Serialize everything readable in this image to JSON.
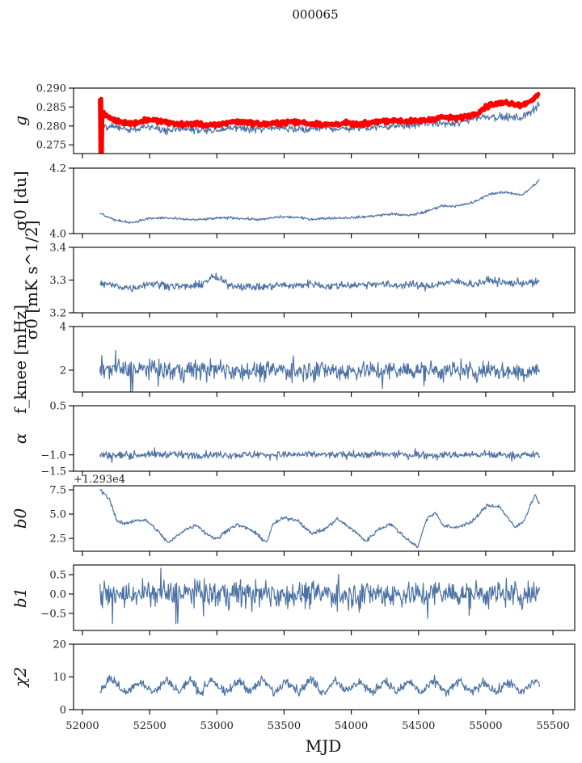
{
  "chart_data": {
    "type": "line",
    "title": "000065",
    "xlabel": "MJD",
    "xlim": [
      51934,
      55662
    ],
    "xticks": [
      52000,
      52500,
      53000,
      53500,
      54000,
      54500,
      55000,
      55500
    ],
    "xtick_labels": [
      "52000",
      "52500",
      "53000",
      "53500",
      "54000",
      "54500",
      "55000",
      "55500"
    ],
    "grid": false,
    "colors": {
      "series": "#4c72a4",
      "reference": "#ff0000",
      "axis": "#000000"
    },
    "grid_x": [
      52130,
      52251,
      52372,
      52493,
      52614,
      52735,
      52856,
      52977,
      53098,
      53219,
      53340,
      53461,
      53582,
      53703,
      53824,
      53945,
      54066,
      54187,
      54308,
      54429,
      54550,
      54671,
      54792,
      54913,
      55034,
      55155,
      55276,
      55400
    ],
    "panels": [
      {
        "name": "g",
        "ylabel": "g",
        "ylim": [
          0.2727,
          0.29
        ],
        "yticks": [
          0.275,
          0.28,
          0.285,
          0.29
        ],
        "ytick_labels": [
          "0.275",
          "0.280",
          "0.285",
          "0.290"
        ],
        "series": [
          {
            "name": "g",
            "color": "#4c72a4",
            "noise": 0.0005,
            "values": [
              0.2795,
              0.2796,
              0.279,
              0.2797,
              0.2786,
              0.2795,
              0.279,
              0.2786,
              0.2795,
              0.2795,
              0.279,
              0.2795,
              0.2792,
              0.2793,
              0.2795,
              0.2792,
              0.2795,
              0.2797,
              0.28,
              0.2801,
              0.2808,
              0.2807,
              0.2805,
              0.2822,
              0.2826,
              0.2822,
              0.2822,
              0.2858
            ]
          },
          {
            "name": "g reference",
            "color": "#ff0000",
            "noise": 0.0003,
            "thick": true,
            "values": [
              0.2835,
              0.2813,
              0.2806,
              0.2817,
              0.281,
              0.2804,
              0.2806,
              0.28,
              0.2811,
              0.281,
              0.2804,
              0.2808,
              0.2811,
              0.2806,
              0.2803,
              0.2807,
              0.2803,
              0.2812,
              0.2815,
              0.2812,
              0.2815,
              0.2823,
              0.282,
              0.2831,
              0.2856,
              0.2862,
              0.2855,
              0.2882
            ]
          }
        ]
      },
      {
        "name": "sigma0-du",
        "ylabel": "σ0 [du]",
        "ylim": [
          4.0,
          4.2
        ],
        "yticks": [
          4.0,
          4.2
        ],
        "ytick_labels": [
          "4.0",
          "4.2"
        ],
        "series": [
          {
            "name": "sigma0 du",
            "color": "#4c72a4",
            "noise": 0.002,
            "values": [
              4.062,
              4.04,
              4.034,
              4.046,
              4.048,
              4.044,
              4.042,
              4.046,
              4.049,
              4.045,
              4.043,
              4.051,
              4.05,
              4.044,
              4.047,
              4.048,
              4.05,
              4.055,
              4.06,
              4.055,
              4.066,
              4.085,
              4.084,
              4.096,
              4.122,
              4.126,
              4.118,
              4.163
            ]
          }
        ]
      },
      {
        "name": "sigma0-mK",
        "ylabel": "σ0 [mK s^1/2]",
        "ylim": [
          3.2,
          3.4
        ],
        "yticks": [
          3.2,
          3.3,
          3.4
        ],
        "ytick_labels": [
          "3.2",
          "3.3",
          "3.4"
        ],
        "series": [
          {
            "name": "sigma0 mK",
            "color": "#4c72a4",
            "noise": 0.006,
            "values": [
              3.29,
              3.282,
              3.275,
              3.29,
              3.285,
              3.28,
              3.282,
              3.31,
              3.285,
              3.28,
              3.278,
              3.285,
              3.282,
              3.29,
              3.28,
              3.285,
              3.285,
              3.29,
              3.283,
              3.287,
              3.28,
              3.29,
              3.295,
              3.287,
              3.3,
              3.29,
              3.292,
              3.292
            ]
          }
        ]
      },
      {
        "name": "fknee",
        "ylabel": "f_knee [mHz]",
        "ylim": [
          1,
          4
        ],
        "yticks": [
          2,
          4
        ],
        "ytick_labels": [
          "2",
          "4"
        ],
        "series": [
          {
            "name": "fknee",
            "color": "#4c72a4",
            "noise": 0.22,
            "spiky": true,
            "values": [
              2.1,
              2.05,
              2.0,
              2.05,
              2.0,
              1.95,
              2.0,
              2.05,
              2.0,
              2.0,
              1.95,
              2.0,
              2.0,
              2.05,
              2.0,
              1.95,
              2.0,
              2.0,
              1.95,
              2.0,
              2.0,
              1.95,
              2.0,
              1.95,
              2.0,
              1.95,
              1.9,
              2.0
            ]
          }
        ]
      },
      {
        "name": "alpha",
        "ylabel": "α",
        "ylim": [
          -1.5,
          0.5
        ],
        "yticks": [
          -1.5,
          -1.0,
          0.5
        ],
        "ytick_labels": [
          "−1.5",
          "−1.0",
          "0.5"
        ],
        "series": [
          {
            "name": "alpha",
            "color": "#4c72a4",
            "noise": 0.055,
            "spiky": true,
            "values": [
              -1.0,
              -1.02,
              -1.0,
              -1.0,
              -0.98,
              -1.0,
              -1.0,
              -1.0,
              -1.0,
              -1.0,
              -0.99,
              -1.0,
              -1.0,
              -0.98,
              -1.0,
              -1.0,
              -1.0,
              -0.99,
              -1.0,
              -1.0,
              -1.0,
              -1.0,
              -1.0,
              -1.0,
              -1.0,
              -1.0,
              -1.0,
              -1.0
            ]
          }
        ]
      },
      {
        "name": "b0",
        "ylabel": "b0",
        "offset_text": "+1.293e4",
        "ylim": [
          1.17,
          7.92
        ],
        "yticks": [
          2.5,
          5.0,
          7.5
        ],
        "ytick_labels": [
          "2.5",
          "5.0",
          "7.5"
        ],
        "series": [
          {
            "name": "b0",
            "color": "#4c72a4",
            "noise": 0.1,
            "x": [
              52130,
              52200,
              52260,
              52320,
              52400,
              52480,
              52550,
              52640,
              52750,
              52850,
              52920,
              53000,
              53080,
              53150,
              53250,
              53370,
              53420,
              53500,
              53600,
              53700,
              53800,
              53894,
              54000,
              54110,
              54200,
              54290,
              54400,
              54495,
              54560,
              54630,
              54680,
              54770,
              54900,
              55010,
              55100,
              55155,
              55215,
              55280,
              55365,
              55400
            ],
            "values": [
              7.5,
              6.6,
              4.2,
              4.0,
              4.4,
              4.3,
              3.4,
              2.0,
              3.3,
              3.9,
              3.0,
              2.4,
              3.4,
              3.9,
              3.4,
              2.1,
              4.0,
              4.6,
              4.4,
              3.0,
              3.4,
              4.5,
              3.5,
              2.2,
              3.4,
              4.0,
              2.6,
              1.6,
              4.5,
              5.2,
              3.8,
              3.6,
              4.2,
              5.9,
              5.8,
              4.8,
              3.6,
              4.2,
              7.0,
              6.1
            ]
          }
        ]
      },
      {
        "name": "b1",
        "ylabel": "b1",
        "ylim": [
          -0.94,
          0.75
        ],
        "yticks": [
          -0.5,
          0.0,
          0.5
        ],
        "ytick_labels": [
          "−0.5",
          "0.0",
          "0.5"
        ],
        "series": [
          {
            "name": "b1",
            "color": "#4c72a4",
            "noise": 0.17,
            "spiky": true,
            "values": [
              0.0,
              -0.05,
              0.0,
              0.02,
              0.0,
              0.0,
              0.03,
              0.0,
              0.0,
              0.0,
              0.0,
              0.0,
              0.0,
              0.0,
              0.0,
              0.0,
              0.0,
              0.02,
              0.0,
              0.0,
              0.0,
              0.02,
              0.0,
              0.0,
              0.0,
              0.0,
              0.0,
              0.0
            ]
          }
        ]
      },
      {
        "name": "chi2",
        "ylabel": "χ2",
        "ylim": [
          0,
          20
        ],
        "yticks": [
          0,
          10,
          20
        ],
        "ytick_labels": [
          "0",
          "10",
          "20"
        ],
        "series": [
          {
            "name": "chi2",
            "color": "#4c72a4",
            "noise": 0.7,
            "x": [
              52130,
              52210,
              52320,
              52430,
              52530,
              52630,
              52720,
              52800,
              52880,
              52960,
              53060,
              53170,
              53250,
              53340,
              53430,
              53520,
              53610,
              53700,
              53790,
              53880,
              53970,
              54060,
              54150,
              54250,
              54340,
              54430,
              54520,
              54620,
              54710,
              54800,
              54890,
              54990,
              55080,
              55170,
              55260,
              55370,
              55400
            ],
            "values": [
              5.8,
              9.8,
              5.0,
              8.8,
              5.2,
              9.2,
              5.3,
              9.3,
              5.0,
              9.6,
              4.8,
              9.0,
              5.5,
              9.2,
              5.0,
              9.3,
              5.4,
              9.4,
              5.0,
              9.3,
              5.5,
              8.8,
              5.0,
              9.0,
              5.2,
              8.7,
              5.0,
              8.8,
              5.0,
              8.9,
              5.0,
              8.5,
              5.2,
              8.6,
              5.0,
              9.0,
              7.5
            ]
          }
        ]
      }
    ]
  }
}
